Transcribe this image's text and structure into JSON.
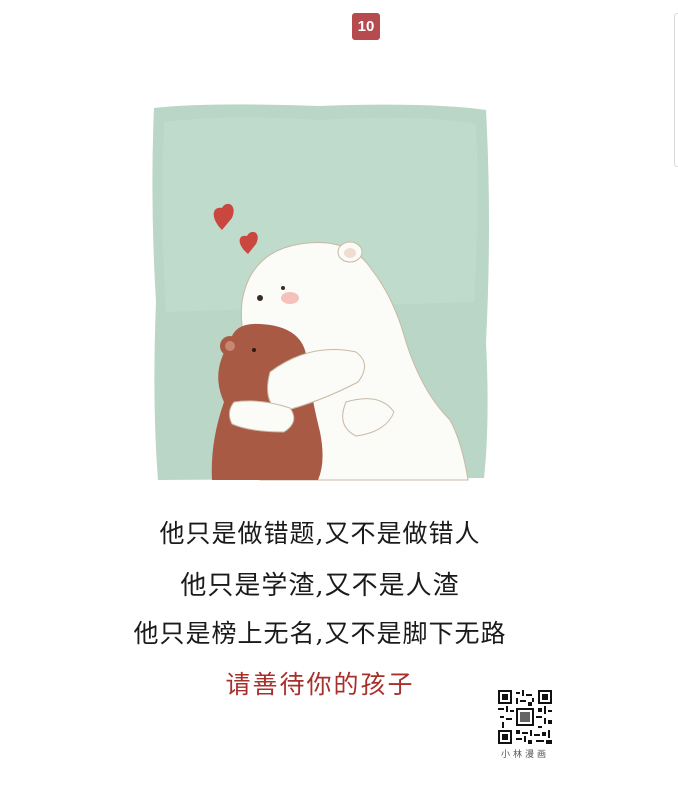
{
  "page": {
    "number": "10"
  },
  "illustration": {
    "description_icon": "bears-hug-illustration",
    "colors": {
      "background": "#b9d6c6",
      "polar_bear": "#fbfbf7",
      "brown_bear": "#a85a45",
      "hearts": "#c9473f"
    }
  },
  "caption": {
    "line1": "他只是做错题,又不是做错人",
    "line2": "他只是学渣,又不是人渣",
    "line3": "他只是榜上无名,又不是脚下无路",
    "line4": "请善待你的孩子"
  },
  "brand": {
    "name": "小林漫画"
  },
  "colors": {
    "badge": "#b54a4f",
    "accent_text": "#a8302c",
    "text": "#1a1a1a"
  }
}
